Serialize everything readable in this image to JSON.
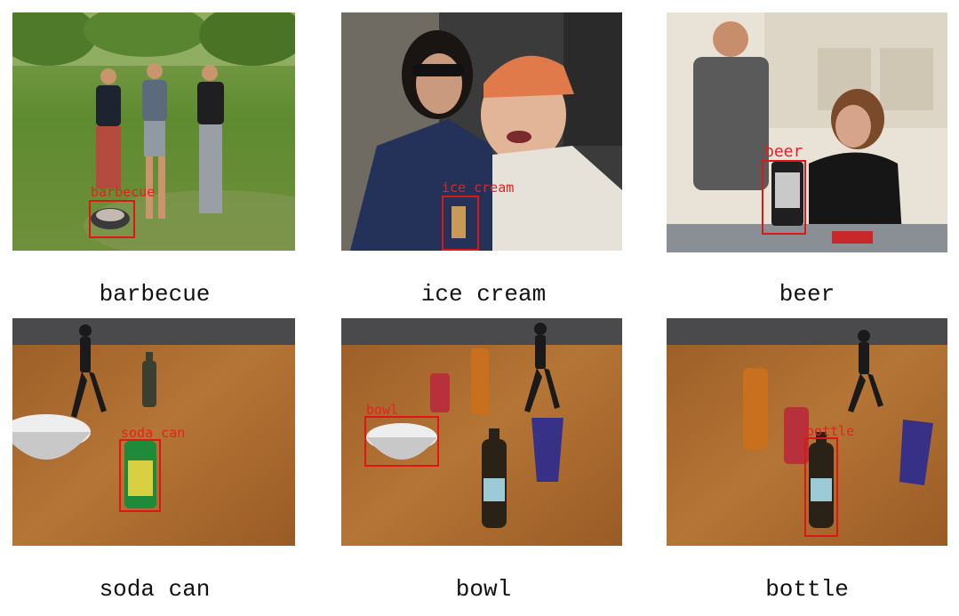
{
  "captions": {
    "p1": "barbecue",
    "p2": "ice cream",
    "p3": "beer",
    "p4": "soda can",
    "p5": "bowl",
    "p6": "bottle"
  },
  "box_labels": {
    "p1": "barbecue",
    "p2": "ice cream",
    "p3": "beer",
    "p4": "soda can",
    "p5": "bowl",
    "p6": "bottle"
  },
  "colors": {
    "detection_box": "#e01515",
    "table_wood": "#a8692f",
    "grass": "#6d9a3a"
  }
}
